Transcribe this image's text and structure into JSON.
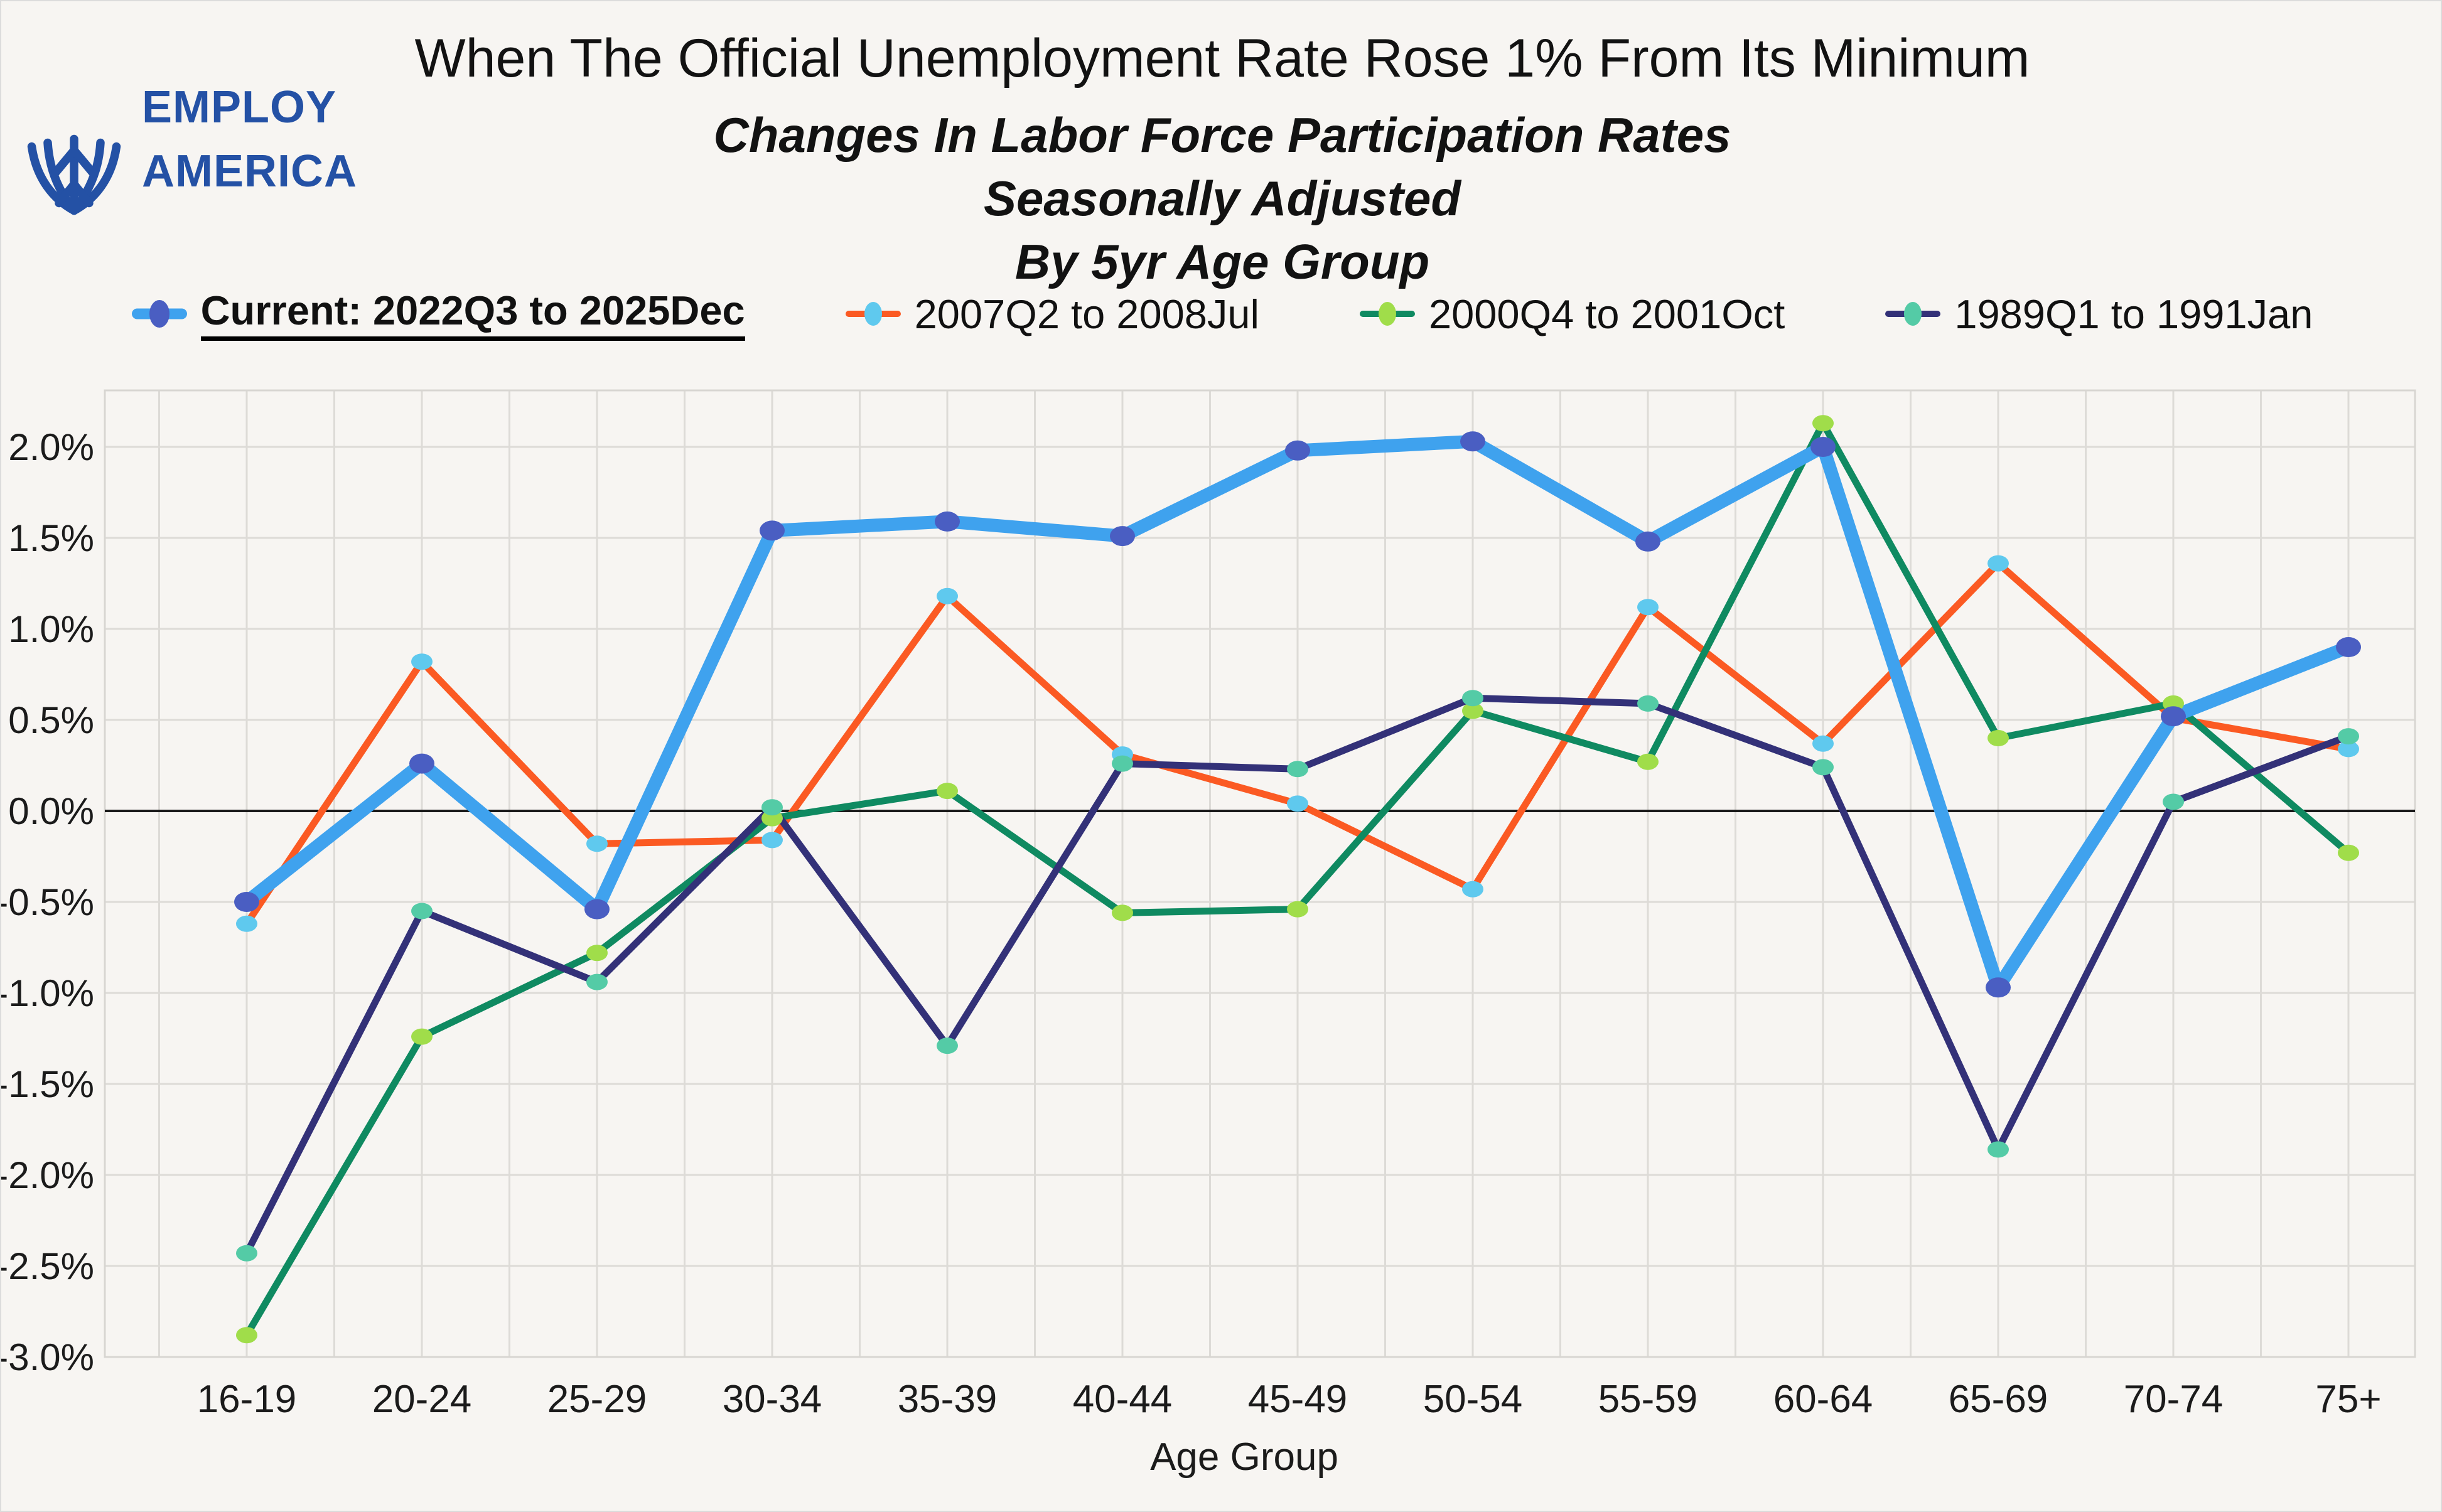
{
  "header": {
    "brand_line1": "EMPLOY",
    "brand_line2": "AMERICA",
    "brand_color": "#2451A5",
    "title": "When The Official Unemployment Rate Rose 1% From Its Minimum",
    "subtitle1": "Changes In Labor Force Participation Rates",
    "subtitle2": "Seasonally Adjusted",
    "subtitle3": "By 5yr Age Group"
  },
  "chart_data": {
    "type": "line",
    "title": "Changes In Labor Force Participation Rates, Seasonally Adjusted, By 5yr Age Group",
    "xlabel": "Age Group",
    "ylabel": "",
    "grid": true,
    "legend_position": "top",
    "ylim": [
      -3.0,
      2.3
    ],
    "y_tick_values": [
      2.0,
      1.5,
      1.0,
      0.5,
      0.0,
      -0.5,
      -1.0,
      -1.5,
      -2.0,
      -2.5,
      -3.0
    ],
    "y_tick_labels": [
      "2.0%",
      "1.5%",
      "1.0%",
      "0.5%",
      "0.0%",
      "-0.5%",
      "-1.0%",
      "-1.5%",
      "-2.0%",
      "-2.5%",
      "-3.0%"
    ],
    "categories": [
      "16-19",
      "20-24",
      "25-29",
      "30-34",
      "35-39",
      "40-44",
      "45-49",
      "50-54",
      "55-59",
      "60-64",
      "65-69",
      "70-74",
      "75+"
    ],
    "series": [
      {
        "name": "Current: 2022Q3 to 2025Dec",
        "line_color": "#3FA2EE",
        "marker_color": "#4A5EC2",
        "emphasis": true,
        "values": [
          -0.5,
          0.26,
          -0.54,
          1.54,
          1.59,
          1.51,
          1.98,
          2.03,
          1.48,
          2.0,
          -0.97,
          0.52,
          0.9
        ]
      },
      {
        "name": "2007Q2 to 2008Jul",
        "line_color": "#FB5A23",
        "marker_color": "#5FC9EE",
        "emphasis": false,
        "values": [
          -0.62,
          0.82,
          -0.18,
          -0.16,
          1.18,
          0.31,
          0.04,
          -0.43,
          1.12,
          0.37,
          1.36,
          0.51,
          0.34
        ]
      },
      {
        "name": "2000Q4 to 2001Oct",
        "line_color": "#0F8A61",
        "marker_color": "#A0DD4A",
        "emphasis": false,
        "values": [
          -2.88,
          -1.24,
          -0.78,
          -0.04,
          0.11,
          -0.56,
          -0.54,
          0.55,
          0.27,
          2.13,
          0.4,
          0.59,
          -0.23
        ]
      },
      {
        "name": "1989Q1 to 1991Jan",
        "line_color": "#333178",
        "marker_color": "#54CBA6",
        "emphasis": false,
        "values": [
          -2.43,
          -0.55,
          -0.94,
          0.02,
          -1.29,
          0.26,
          0.23,
          0.62,
          0.59,
          0.24,
          -1.86,
          0.05,
          0.41
        ]
      }
    ],
    "colors": {
      "background": "#F7F5F2",
      "gridline": "#DDDBD7",
      "zero_line": "#1A1A1A",
      "tick_text": "#1B1B1B"
    }
  }
}
